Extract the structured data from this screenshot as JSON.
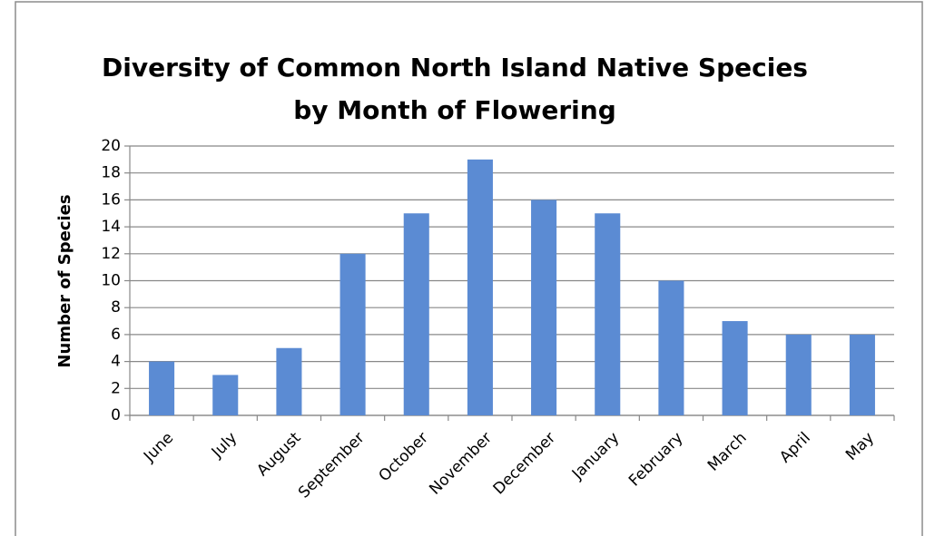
{
  "chart_data": {
    "type": "bar",
    "title": [
      "Diversity of Common North Island Native Species",
      "by Month of Flowering"
    ],
    "y_label": "Number of Species",
    "categories": [
      "June",
      "July",
      "August",
      "September",
      "October",
      "November",
      "December",
      "January",
      "February",
      "March",
      "April",
      "May"
    ],
    "values": [
      4,
      3,
      5,
      12,
      15,
      19,
      16,
      15,
      10,
      7,
      6,
      6
    ],
    "color": "#5b8bd3",
    "ylim": [
      0,
      20
    ],
    "yticks": [
      0,
      2,
      4,
      6,
      8,
      10,
      12,
      14,
      16,
      18,
      20
    ],
    "grid": true
  }
}
